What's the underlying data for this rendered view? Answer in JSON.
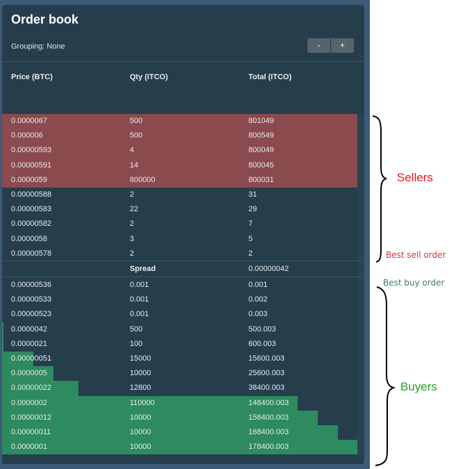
{
  "order_book": {
    "title": "Order book",
    "grouping_label": "Grouping: None",
    "minus_label": "-",
    "plus_label": "+",
    "columns": {
      "price": "Price (BTC)",
      "qty": "Qty (ITCO)",
      "total": "Total (ITCO)"
    },
    "sell_orders": [
      {
        "price": "0.0000067",
        "qty": "500",
        "total": "801049",
        "depth": 1.0
      },
      {
        "price": "0.000006",
        "qty": "500",
        "total": "800549",
        "depth": 1.0
      },
      {
        "price": "0.00000593",
        "qty": "4",
        "total": "800049",
        "depth": 1.0
      },
      {
        "price": "0.00000591",
        "qty": "14",
        "total": "800045",
        "depth": 1.0
      },
      {
        "price": "0.0000059",
        "qty": "800000",
        "total": "800031",
        "depth": 1.0
      },
      {
        "price": "0.00000588",
        "qty": "2",
        "total": "31",
        "depth": 0
      },
      {
        "price": "0.00000583",
        "qty": "22",
        "total": "29",
        "depth": 0
      },
      {
        "price": "0.00000582",
        "qty": "2",
        "total": "7",
        "depth": 0
      },
      {
        "price": "0.0000058",
        "qty": "3",
        "total": "5",
        "depth": 0
      },
      {
        "price": "0.00000578",
        "qty": "2",
        "total": "2",
        "depth": 0
      }
    ],
    "spread": {
      "label": "Spread",
      "value": "0.00000042"
    },
    "buy_orders": [
      {
        "price": "0.00000536",
        "qty": "0.001",
        "total": "0.001",
        "depth": 0
      },
      {
        "price": "0.00000533",
        "qty": "0.001",
        "total": "0.002",
        "depth": 0
      },
      {
        "price": "0.00000523",
        "qty": "0.001",
        "total": "0.003",
        "depth": 0
      },
      {
        "price": "0.0000042",
        "qty": "500",
        "total": "500.003",
        "depth": 0.003
      },
      {
        "price": "0.0000021",
        "qty": "100",
        "total": "600.003",
        "depth": 0.003
      },
      {
        "price": "0.00000051",
        "qty": "15000",
        "total": "15600.003",
        "depth": 0.087
      },
      {
        "price": "0.0000005",
        "qty": "10000",
        "total": "25600.003",
        "depth": 0.144
      },
      {
        "price": "0.00000022",
        "qty": "12800",
        "total": "38400.003",
        "depth": 0.215
      },
      {
        "price": "0.0000002",
        "qty": "110000",
        "total": "148400.003",
        "depth": 0.833
      },
      {
        "price": "0.00000012",
        "qty": "10000",
        "total": "158400.003",
        "depth": 0.889
      },
      {
        "price": "0.00000011",
        "qty": "10000",
        "total": "168400.003",
        "depth": 0.945
      },
      {
        "price": "0.0000001",
        "qty": "10000",
        "total": "178400.003",
        "depth": 1.0
      }
    ]
  },
  "annotations": {
    "sellers": "Sellers",
    "best_sell_order": "Best sell order",
    "best_buy_order": "Best buy order",
    "buyers": "Buyers"
  },
  "colors": {
    "sell_depth": "#8b4a4d",
    "buy_depth": "#2e8a5f",
    "sellers_text": "#e8141b",
    "buyers_text": "#21a51a"
  }
}
